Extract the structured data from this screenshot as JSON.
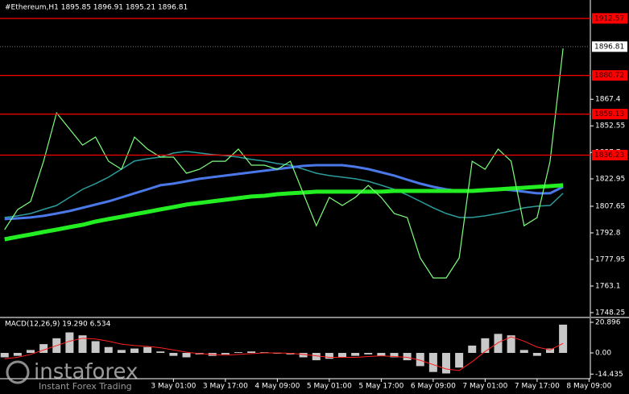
{
  "chart_data": [
    {
      "type": "line",
      "title": "#Ethereum,H1  1895.85 1896.91 1895.21 1896.81",
      "categories": [
        null,
        null,
        null,
        null,
        null,
        null,
        null,
        null,
        null,
        null,
        null,
        null,
        null,
        "3 May 01:00",
        null,
        null,
        null,
        "3 May 17:00",
        null,
        null,
        null,
        "4 May 09:00",
        null,
        null,
        null,
        "5 May 01:00",
        null,
        null,
        null,
        "5 May 17:00",
        null,
        null,
        null,
        "6 May 09:00",
        null,
        null,
        null,
        "7 May 01:00",
        null,
        null,
        null,
        "7 May 17:00",
        null,
        null,
        null,
        "8 May 09:00"
      ],
      "series": [
        {
          "color": "#2e9c9c",
          "width": 1.5,
          "values": [
            1801.4,
            1802.3,
            1803.6,
            1805.9,
            1808.1,
            1812.6,
            1817.1,
            1820.3,
            1823.9,
            1828.4,
            1832.9,
            1834.2,
            1835.1,
            1837.4,
            1838.3,
            1837.4,
            1836.5,
            1836.0,
            1835.1,
            1833.8,
            1832.9,
            1831.5,
            1830.6,
            1828.4,
            1826.1,
            1824.8,
            1823.9,
            1823.0,
            1821.6,
            1819.4,
            1817.1,
            1814.0,
            1810.4,
            1806.8,
            1803.6,
            1801.4,
            1801.4,
            1802.3,
            1803.6,
            1805.0,
            1806.8,
            1807.7,
            1808.1,
            1814.9,
            null,
            null
          ]
        },
        {
          "color": "#4a78e8",
          "width": 3,
          "values": [
            1800.5,
            1800.9,
            1801.4,
            1802.3,
            1803.6,
            1805.0,
            1806.8,
            1808.6,
            1810.4,
            1812.6,
            1814.9,
            1817.1,
            1819.4,
            1820.3,
            1821.6,
            1823.0,
            1823.9,
            1824.8,
            1825.7,
            1826.6,
            1827.5,
            1828.4,
            1829.3,
            1830.2,
            1830.6,
            1830.6,
            1830.6,
            1829.7,
            1828.4,
            1826.6,
            1824.8,
            1822.5,
            1820.3,
            1818.5,
            1817.1,
            1816.2,
            1815.8,
            1816.2,
            1817.1,
            1816.7,
            1815.8,
            1814.9,
            1814.9,
            1818.5,
            null,
            null
          ]
        },
        {
          "color": "#22ee22",
          "width": 5,
          "values": [
            1789.2,
            1790.6,
            1791.9,
            1793.3,
            1794.6,
            1796.0,
            1797.3,
            1799.1,
            1800.5,
            1801.8,
            1803.2,
            1804.5,
            1805.9,
            1807.2,
            1808.6,
            1809.5,
            1810.4,
            1811.3,
            1812.2,
            1813.1,
            1813.5,
            1814.4,
            1814.9,
            1815.3,
            1815.8,
            1815.8,
            1815.8,
            1815.8,
            1815.8,
            1815.8,
            1816.2,
            1816.2,
            1816.2,
            1816.2,
            1816.2,
            1816.2,
            1816.2,
            1816.7,
            1817.1,
            1817.6,
            1818.0,
            1818.5,
            1818.9,
            1819.4,
            null,
            null
          ]
        },
        {
          "color": "#7dff7d",
          "width": 1.2,
          "values": [
            1794.6,
            1805.8,
            1810.3,
            1832.8,
            1859.8,
            1850.8,
            1841.8,
            1846.3,
            1832.8,
            1828.3,
            1846.3,
            1839.6,
            1835.1,
            1835.1,
            1826.1,
            1828.3,
            1832.8,
            1832.8,
            1839.6,
            1830.6,
            1830.6,
            1828.3,
            1832.8,
            1814.8,
            1796.8,
            1812.6,
            1808.1,
            1812.6,
            1819.3,
            1812.6,
            1803.6,
            1801.3,
            1778.8,
            1767.6,
            1767.6,
            1778.8,
            1832.8,
            1828.3,
            1839.6,
            1832.8,
            1796.8,
            1801.3,
            1832.8,
            1895.8,
            null,
            null
          ]
        }
      ],
      "ylim": [
        1746.45,
        1922.85
      ],
      "yticks": [
        1867.4,
        1852.55,
        1837.7,
        1822.95,
        1807.65,
        1792.8,
        1777.95,
        1763.1,
        1748.25
      ],
      "levels": [
        {
          "value": 1912.57,
          "color": "#ff0000"
        },
        {
          "value": 1880.72,
          "color": "#ff0000"
        },
        {
          "value": 1859.13,
          "color": "#ff0000"
        },
        {
          "value": 1836.23,
          "color": "#ff0000"
        }
      ],
      "last_price": 1896.81,
      "grid": false
    },
    {
      "type": "bar",
      "title": "MACD(12,26,9) 19.290 6.534",
      "ylim": [
        -17.58,
        23.09
      ],
      "yticks": [
        20.896,
        {
          "value": 0,
          "label": "0.00"
        },
        -14.435
      ],
      "series": [
        {
          "type": "bar",
          "color": "#c8c8c8",
          "values": [
            -3,
            -2,
            2,
            6,
            10,
            14,
            12,
            8,
            4,
            2,
            3,
            4,
            1,
            -2,
            -3,
            -1,
            -2,
            -1,
            0.5,
            1,
            0.5,
            -0.5,
            -1,
            -3,
            -5,
            -4,
            -3,
            -2,
            -1,
            -2,
            -3,
            -5,
            -9,
            -13,
            -14,
            -10,
            5,
            10,
            13,
            12,
            2,
            -2,
            3,
            19.29,
            null,
            null
          ]
        },
        {
          "type": "line",
          "color": "#ff2020",
          "values": [
            -4,
            -3,
            -1,
            2,
            5,
            8,
            10,
            9.5,
            8,
            6,
            5,
            4.5,
            3.5,
            2,
            0.5,
            -0.5,
            -1,
            -1.5,
            -1,
            -0.5,
            0,
            0,
            -0.3,
            -1,
            -2,
            -3,
            -3,
            -3,
            -2.5,
            -2,
            -2.5,
            -3,
            -5,
            -8,
            -11,
            -12,
            -6,
            1,
            7,
            11,
            8,
            4,
            2,
            6.5,
            null,
            null
          ]
        }
      ]
    }
  ],
  "watermark": {
    "brand": "instaforex",
    "tagline": "Instant Forex Trading"
  }
}
